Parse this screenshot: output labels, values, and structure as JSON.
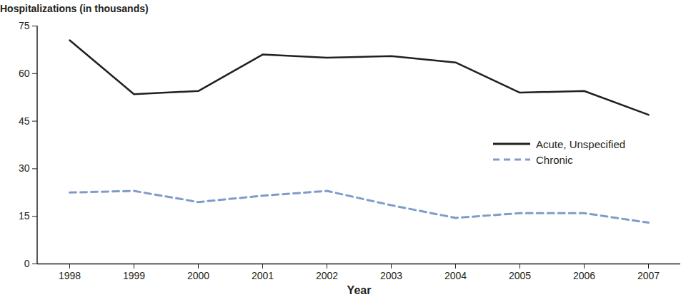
{
  "chart_data": {
    "type": "line",
    "y_label": "Hospitalizations (in thousands)",
    "x_label": "Year",
    "categories": [
      "1998",
      "1999",
      "2000",
      "2001",
      "2002",
      "2003",
      "2004",
      "2005",
      "2006",
      "2007"
    ],
    "series": [
      {
        "name": "Acute, Unspecified",
        "color": "#231f20",
        "line_style": "solid",
        "values": [
          70.5,
          53.5,
          54.5,
          66,
          65,
          65.5,
          63.5,
          54,
          54.5,
          47
        ]
      },
      {
        "name": "Chronic",
        "color": "#7f9cc8",
        "line_style": "dashed",
        "values": [
          22.5,
          23,
          19.5,
          21.5,
          23,
          18.5,
          14.5,
          16,
          16,
          13
        ]
      }
    ],
    "ylim": [
      0,
      75
    ],
    "yticks": [
      0,
      15,
      30,
      45,
      60,
      75
    ],
    "grid": false,
    "legend": "right"
  }
}
